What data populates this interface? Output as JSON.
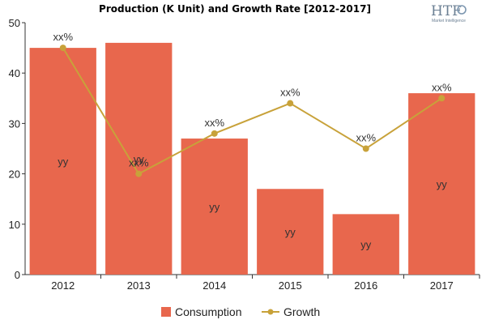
{
  "chart_data": {
    "type": "bar",
    "title": "Production (K Unit) and Growth Rate [2012-2017]",
    "categories": [
      "2012",
      "2013",
      "2014",
      "2015",
      "2016",
      "2017"
    ],
    "series": [
      {
        "name": "Consumption",
        "type": "bar",
        "values": [
          45,
          46,
          27,
          17,
          12,
          36
        ],
        "data_labels": [
          "yy",
          "yy",
          "yy",
          "yy",
          "yy",
          "yy"
        ],
        "color": "#e8674d"
      },
      {
        "name": "Growth",
        "type": "line",
        "values": [
          45,
          20,
          28,
          34,
          25,
          35
        ],
        "data_labels": [
          "xx%",
          "xx%",
          "xx%",
          "xx%",
          "xx%",
          "xx%"
        ],
        "color": "#c8a23a"
      }
    ],
    "ylim": [
      0,
      50
    ],
    "yticks": [
      "0",
      "10",
      "20",
      "30",
      "40",
      "50"
    ],
    "xlabel": "",
    "ylabel": "",
    "grid": false,
    "legend_position": "bottom"
  },
  "logo": {
    "mark": "HTF",
    "subtitle": "Market Intelligence"
  }
}
